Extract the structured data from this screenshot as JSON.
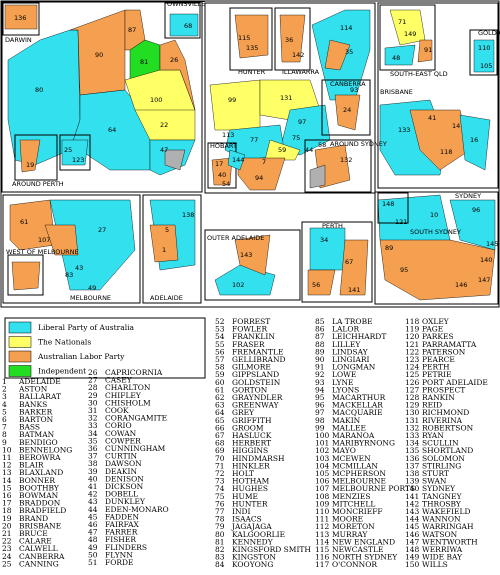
{
  "map": {
    "inset_labels": [
      "DARWIN",
      "TOWNSVILLE",
      "HUNTER",
      "ILLAWARRA",
      "CANBERRA",
      "SOUTH-EAST QLD",
      "GOLD COAST",
      "BRISBANE",
      "HOBART",
      "AROUND SYDNEY",
      "AROUND PERTH",
      "WEST OF MELBOURNE",
      "MELBOURNE",
      "ADELAIDE",
      "OUTER ADELAIDE",
      "PERTH",
      "SYDNEY",
      "SOUTH SYDNEY"
    ],
    "region_numbers": [
      "136",
      "68",
      "87",
      "81",
      "90",
      "80",
      "64",
      "26",
      "100",
      "22",
      "47",
      "19",
      "25",
      "123",
      "135",
      "115",
      "36",
      "142",
      "114",
      "35",
      "93",
      "131",
      "99",
      "97",
      "75",
      "58",
      "44",
      "59",
      "77",
      "113",
      "144",
      "24",
      "17",
      "40",
      "94",
      "54",
      "7",
      "132",
      "71",
      "149",
      "91",
      "48",
      "110",
      "105",
      "133",
      "16",
      "41",
      "118",
      "14",
      "148",
      "121",
      "89",
      "10",
      "96",
      "145",
      "140",
      "147",
      "146",
      "95",
      "61",
      "27",
      "107",
      "43",
      "49",
      "83",
      "5",
      "138",
      "1",
      "143",
      "102",
      "34",
      "67",
      "56",
      "141"
    ]
  },
  "legend": [
    {
      "label": "Liberal Party of Australia",
      "color": "#33e0ee"
    },
    {
      "label": "The Nationals",
      "color": "#ffff66"
    },
    {
      "label": "Australian Labor Party",
      "color": "#f4a050"
    },
    {
      "label": "Independent",
      "color": "#22dd22"
    }
  ],
  "electorates": {
    "columns": [
      [
        [
          1,
          "ADELAIDE"
        ],
        [
          2,
          "ASTON"
        ],
        [
          3,
          "BALLARAT"
        ],
        [
          4,
          "BANKS"
        ],
        [
          5,
          "BARKER"
        ],
        [
          6,
          "BARTON"
        ],
        [
          7,
          "BASS"
        ],
        [
          8,
          "BATMAN"
        ],
        [
          9,
          "BENDIGO"
        ],
        [
          10,
          "BENNELONG"
        ],
        [
          11,
          "BEROWRA"
        ],
        [
          12,
          "BLAIR"
        ],
        [
          13,
          "BLAXLAND"
        ],
        [
          14,
          "BONNER"
        ],
        [
          15,
          "BOOTHBY"
        ],
        [
          16,
          "BOWMAN"
        ],
        [
          17,
          "BRADDON"
        ],
        [
          18,
          "BRADFIELD"
        ],
        [
          19,
          "BRAND"
        ],
        [
          20,
          "BRISBANE"
        ],
        [
          21,
          "BRUCE"
        ],
        [
          22,
          "CALARE"
        ],
        [
          23,
          "CALWELL"
        ],
        [
          24,
          "CANBERRA"
        ],
        [
          25,
          "CANNING"
        ]
      ],
      [
        [
          26,
          "CAPRICORNIA"
        ],
        [
          27,
          "CASEY"
        ],
        [
          28,
          "CHARLTON"
        ],
        [
          29,
          "CHIFLEY"
        ],
        [
          30,
          "CHISHOLM"
        ],
        [
          31,
          "COOK"
        ],
        [
          32,
          "CORANGAMITE"
        ],
        [
          33,
          "CORIO"
        ],
        [
          34,
          "COWAN"
        ],
        [
          35,
          "COWPER"
        ],
        [
          36,
          "CUNNINGHAM"
        ],
        [
          37,
          "CURTIN"
        ],
        [
          38,
          "DAWSON"
        ],
        [
          39,
          "DEAKIN"
        ],
        [
          40,
          "DENISON"
        ],
        [
          41,
          "DICKSON"
        ],
        [
          42,
          "DOBELL"
        ],
        [
          43,
          "DUNKLEY"
        ],
        [
          44,
          "EDEN-MONARO"
        ],
        [
          45,
          "FADDEN"
        ],
        [
          46,
          "FAIRFAX"
        ],
        [
          47,
          "FARRER"
        ],
        [
          48,
          "FISHER"
        ],
        [
          49,
          "FLINDERS"
        ],
        [
          50,
          "FLYNN"
        ],
        [
          51,
          "FORDE"
        ]
      ],
      [
        [
          52,
          "FORREST"
        ],
        [
          53,
          "FOWLER"
        ],
        [
          54,
          "FRANKLIN"
        ],
        [
          55,
          "FRASER"
        ],
        [
          56,
          "FREMANTLE"
        ],
        [
          57,
          "GELLIBRAND"
        ],
        [
          58,
          "GILMORE"
        ],
        [
          59,
          "GIPPSLAND"
        ],
        [
          60,
          "GOLDSTEIN"
        ],
        [
          61,
          "GORTON"
        ],
        [
          62,
          "GRAYNDLER"
        ],
        [
          63,
          "GREENWAY"
        ],
        [
          64,
          "GREY"
        ],
        [
          65,
          "GRIFFITH"
        ],
        [
          66,
          "GROOM"
        ],
        [
          67,
          "HASLUCK"
        ],
        [
          68,
          "HERBERT"
        ],
        [
          69,
          "HIGGINS"
        ],
        [
          70,
          "HINDMARSH"
        ],
        [
          71,
          "HINKLER"
        ],
        [
          72,
          "HOLT"
        ],
        [
          73,
          "HOTHAM"
        ],
        [
          74,
          "HUGHES"
        ],
        [
          75,
          "HUME"
        ],
        [
          76,
          "HUNTER"
        ],
        [
          77,
          "INDI"
        ],
        [
          78,
          "ISAACS"
        ],
        [
          79,
          "JAGAJAGA"
        ],
        [
          80,
          "KALGOORLIE"
        ],
        [
          81,
          "KENNEDY"
        ],
        [
          82,
          "KINGSFORD SMITH"
        ],
        [
          83,
          "KINGSTON"
        ],
        [
          84,
          "KOOYONG"
        ]
      ],
      [
        [
          85,
          "LA TROBE"
        ],
        [
          86,
          "LALOR"
        ],
        [
          87,
          "LEICHHARDT"
        ],
        [
          88,
          "LILLEY"
        ],
        [
          89,
          "LINDSAY"
        ],
        [
          90,
          "LINGIARI"
        ],
        [
          91,
          "LONGMAN"
        ],
        [
          92,
          "LOWE"
        ],
        [
          93,
          "LYNE"
        ],
        [
          94,
          "LYONS"
        ],
        [
          95,
          "MACARTHUR"
        ],
        [
          96,
          "MACKELLAR"
        ],
        [
          97,
          "MACQUARIE"
        ],
        [
          98,
          "MAKIN"
        ],
        [
          99,
          "MALLEE"
        ],
        [
          100,
          "MARANOA"
        ],
        [
          101,
          "MARIBYRNONG"
        ],
        [
          102,
          "MAYO"
        ],
        [
          103,
          "MCEWEN"
        ],
        [
          104,
          "MCMILLAN"
        ],
        [
          105,
          "MCPHERSON"
        ],
        [
          106,
          "MELBOURNE"
        ],
        [
          107,
          "MELBOURNE PORTS"
        ],
        [
          108,
          "MENZIES"
        ],
        [
          109,
          "MITCHELL"
        ],
        [
          110,
          "MONCRIEFF"
        ],
        [
          111,
          "MOORE"
        ],
        [
          112,
          "MORETON"
        ],
        [
          113,
          "MURRAY"
        ],
        [
          114,
          "NEW ENGLAND"
        ],
        [
          115,
          "NEWCASTLE"
        ],
        [
          116,
          "NORTH SYDNEY"
        ],
        [
          117,
          "O'CONNOR"
        ]
      ],
      [
        [
          118,
          "OXLEY"
        ],
        [
          119,
          "PAGE"
        ],
        [
          120,
          "PARKES"
        ],
        [
          121,
          "PARRAMATTA"
        ],
        [
          122,
          "PATERSON"
        ],
        [
          123,
          "PEARCE"
        ],
        [
          124,
          "PERTH"
        ],
        [
          125,
          "PETRIE"
        ],
        [
          126,
          "PORT ADELAIDE"
        ],
        [
          127,
          "PROSPECT"
        ],
        [
          128,
          "RANKIN"
        ],
        [
          129,
          "REID"
        ],
        [
          130,
          "RICHMOND"
        ],
        [
          131,
          "RIVERINA"
        ],
        [
          132,
          "ROBERTSON"
        ],
        [
          133,
          "RYAN"
        ],
        [
          134,
          "SCULLIN"
        ],
        [
          135,
          "SHORTLAND"
        ],
        [
          136,
          "SOLOMON"
        ],
        [
          137,
          "STIRLING"
        ],
        [
          138,
          "STURT"
        ],
        [
          139,
          "SWAN"
        ],
        [
          140,
          "SYDNEY"
        ],
        [
          141,
          "TANGNEY"
        ],
        [
          142,
          "THROSBY"
        ],
        [
          143,
          "WAKEFIELD"
        ],
        [
          144,
          "WANNON"
        ],
        [
          145,
          "WARRINGAH"
        ],
        [
          146,
          "WATSON"
        ],
        [
          147,
          "WENTWORTH"
        ],
        [
          148,
          "WERRIWA"
        ],
        [
          149,
          "WIDE BAY"
        ],
        [
          150,
          "WILLS"
        ]
      ]
    ]
  }
}
